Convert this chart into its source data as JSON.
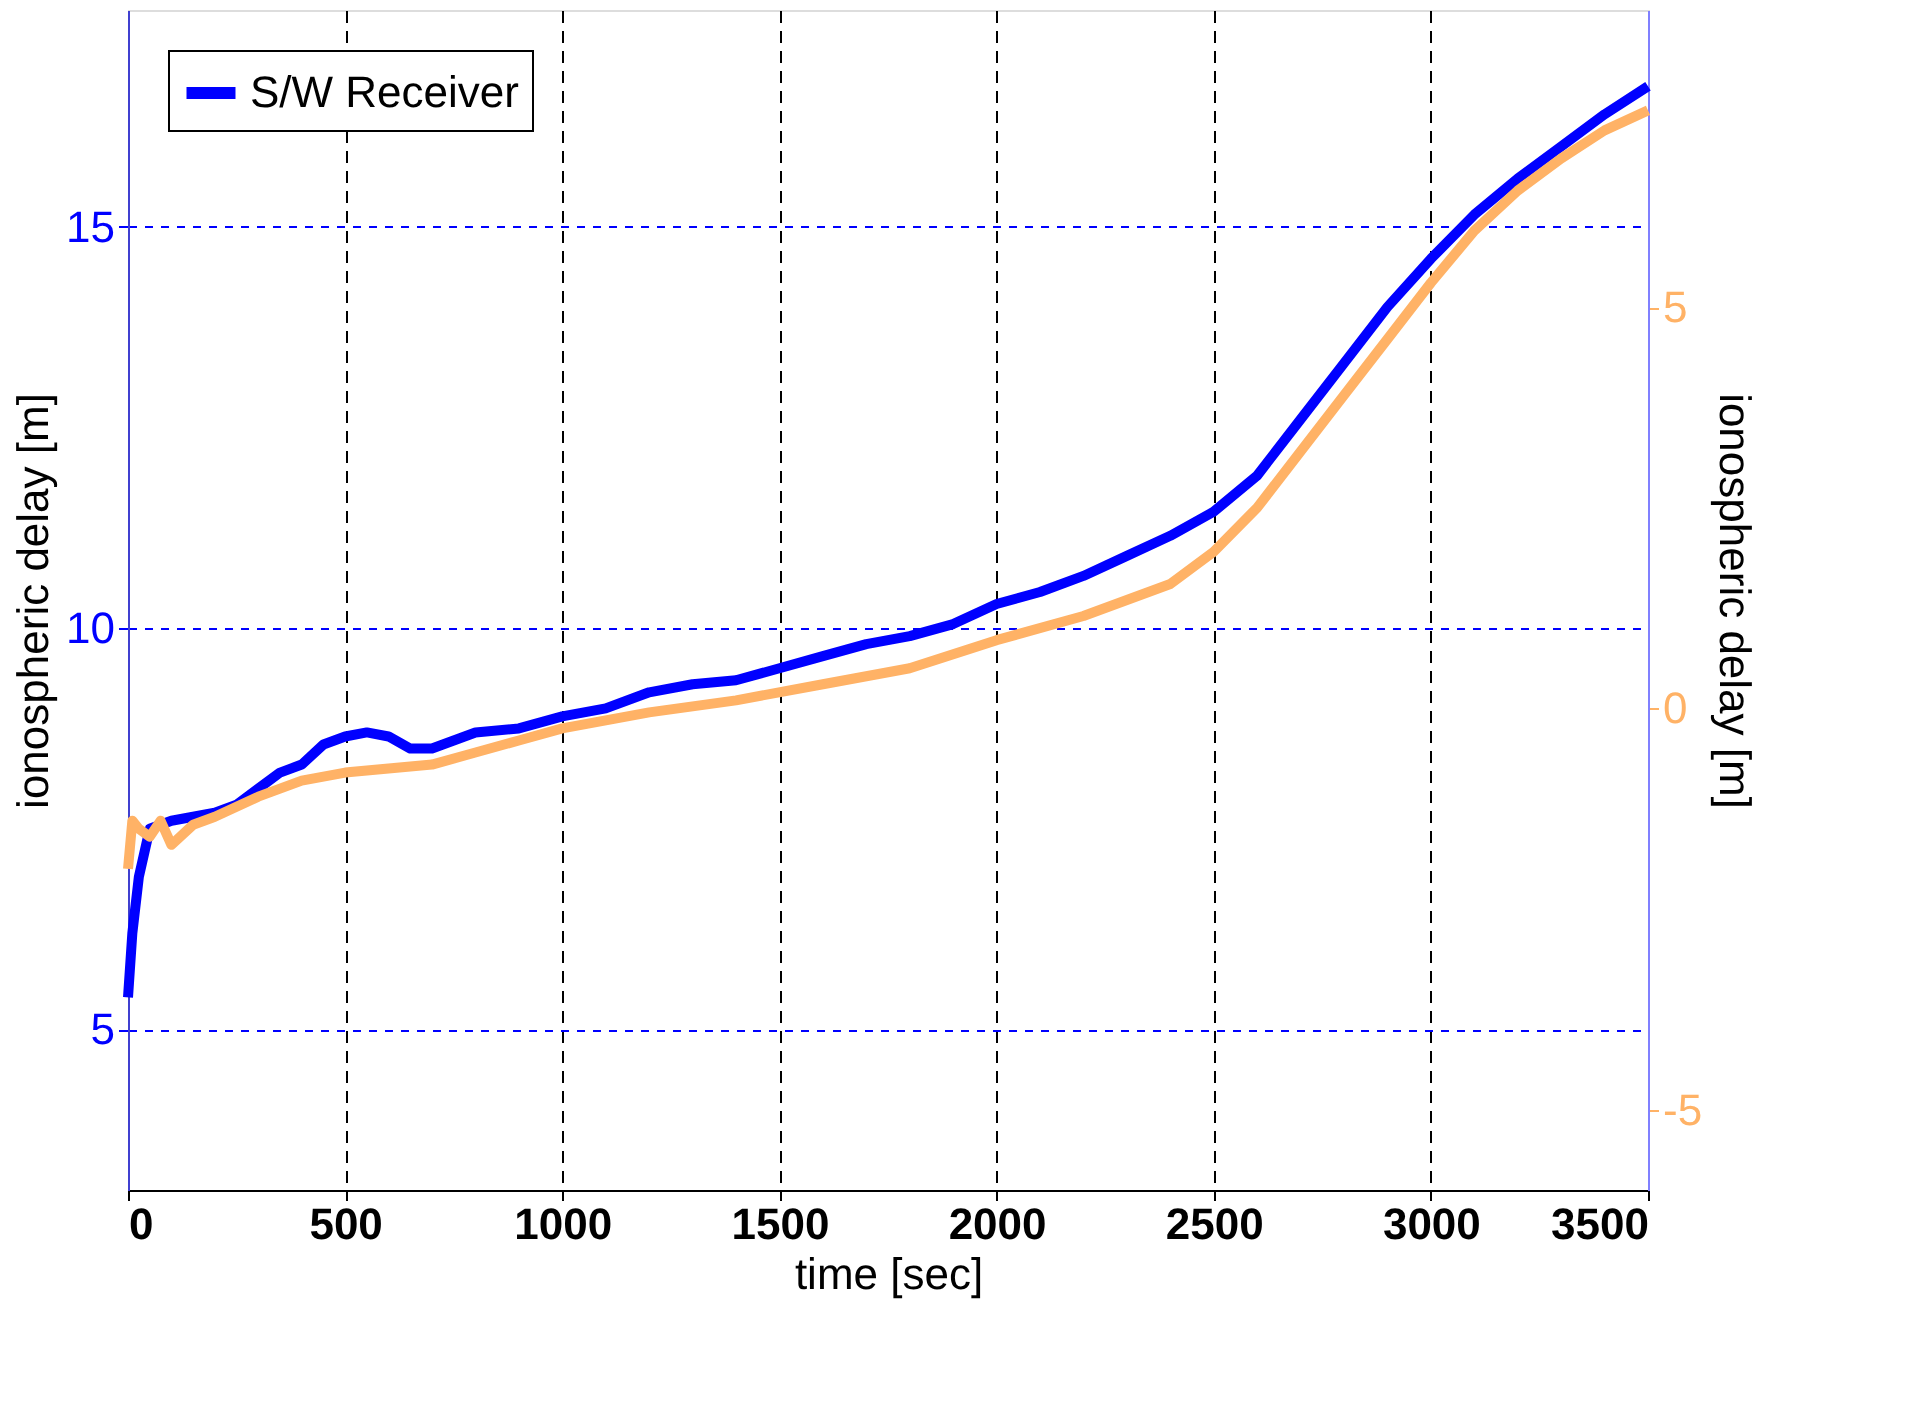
{
  "chart_data": {
    "type": "line",
    "xlabel": "time [sec]",
    "ylabel": "ionospheric delay [m]",
    "y2label": "ionospheric delay [m]",
    "xlim": [
      0,
      3500
    ],
    "xticks": [
      0,
      500,
      1000,
      1500,
      2000,
      2500,
      3000,
      3500
    ],
    "ylim": [
      3,
      17.7
    ],
    "yticks": [
      5,
      10,
      15
    ],
    "y2lim": [
      -6,
      8.7
    ],
    "y2ticks": [
      -5,
      0,
      5
    ],
    "grid": true,
    "legend": "top left",
    "line_style": "solid",
    "marker": "none",
    "series": [
      {
        "name": "S/W Receiver",
        "color": "#0000ff",
        "x": [
          0,
          10,
          25,
          50,
          75,
          100,
          150,
          200,
          250,
          300,
          350,
          400,
          450,
          500,
          550,
          600,
          650,
          700,
          750,
          800,
          900,
          1000,
          1100,
          1200,
          1300,
          1400,
          1500,
          1600,
          1700,
          1800,
          1900,
          2000,
          2100,
          2200,
          2300,
          2400,
          2500,
          2600,
          2700,
          2800,
          2900,
          3000,
          3100,
          3200,
          3300,
          3400,
          3500
        ],
        "values": [
          5.4,
          6.2,
          6.9,
          7.5,
          7.55,
          7.6,
          7.65,
          7.7,
          7.8,
          8.0,
          8.2,
          8.3,
          8.55,
          8.65,
          8.7,
          8.65,
          8.5,
          8.5,
          8.6,
          8.7,
          8.75,
          8.9,
          9.0,
          9.2,
          9.3,
          9.35,
          9.5,
          9.65,
          9.8,
          9.9,
          10.05,
          10.3,
          10.45,
          10.65,
          10.9,
          11.15,
          11.45,
          11.9,
          12.6,
          13.3,
          14.0,
          14.6,
          15.15,
          15.6,
          16.0,
          16.4,
          16.75
        ]
      },
      {
        "color": "#ffb266",
        "axis": "y2",
        "x": [
          0,
          10,
          25,
          50,
          75,
          100,
          150,
          200,
          300,
          400,
          500,
          600,
          700,
          800,
          900,
          1000,
          1200,
          1400,
          1600,
          1800,
          2000,
          2200,
          2400,
          2500,
          2600,
          2700,
          2800,
          2900,
          3000,
          3100,
          3200,
          3300,
          3400,
          3500
        ],
        "values": [
          -2.0,
          -1.4,
          -1.5,
          -1.6,
          -1.4,
          -1.7,
          -1.45,
          -1.35,
          -1.1,
          -0.9,
          -0.8,
          -0.75,
          -0.7,
          -0.55,
          -0.4,
          -0.25,
          -0.05,
          0.1,
          0.3,
          0.5,
          0.85,
          1.15,
          1.55,
          1.95,
          2.5,
          3.2,
          3.9,
          4.6,
          5.3,
          5.95,
          6.45,
          6.85,
          7.2,
          7.45
        ]
      }
    ]
  }
}
